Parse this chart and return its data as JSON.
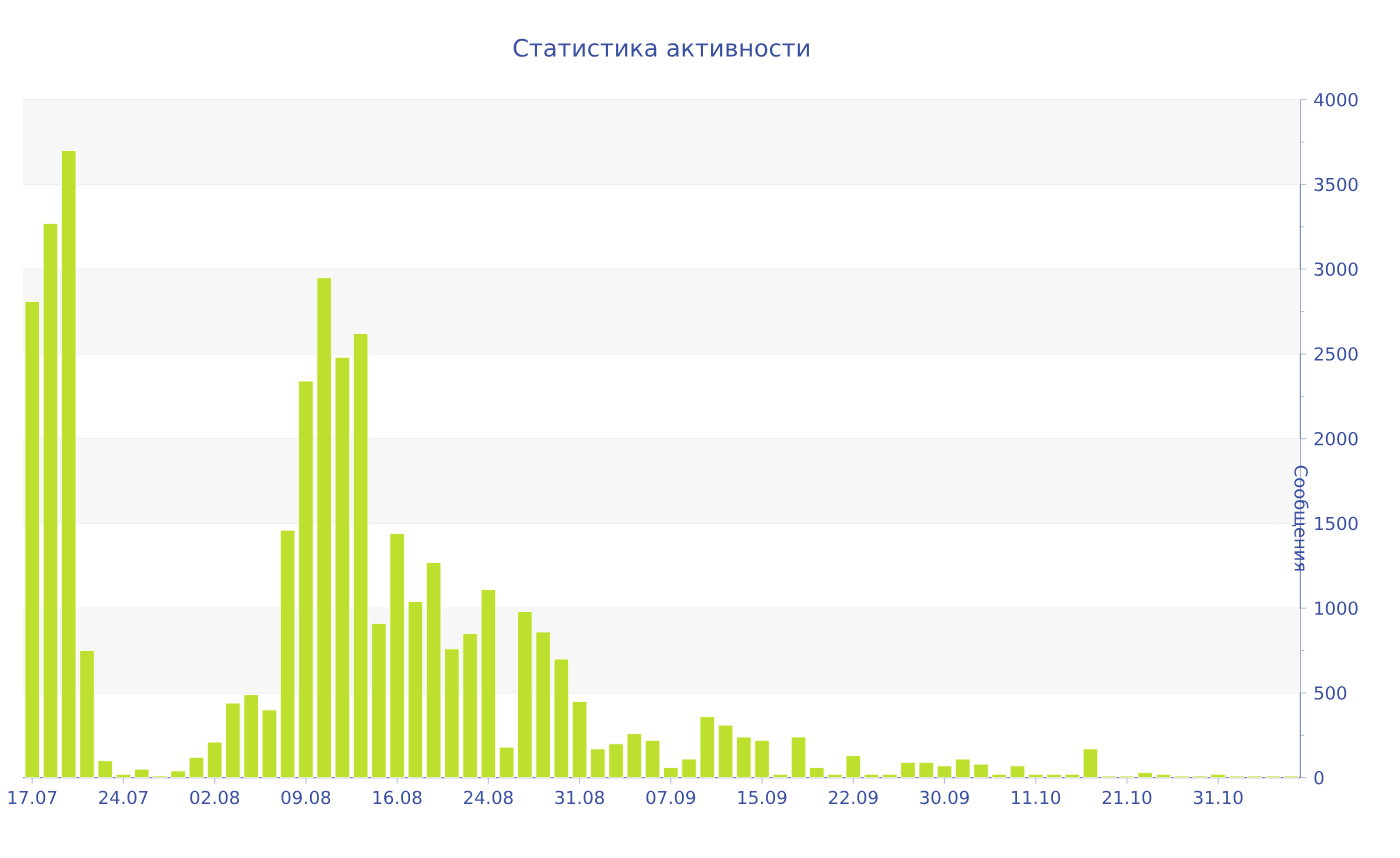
{
  "chart_data": {
    "type": "bar",
    "title": "Статистика активности",
    "ylabel": "Сообщения",
    "categories": [
      "17.07",
      null,
      null,
      null,
      null,
      "24.07",
      null,
      null,
      null,
      null,
      "02.08",
      null,
      null,
      null,
      null,
      "09.08",
      null,
      null,
      null,
      null,
      "16.08",
      null,
      null,
      null,
      null,
      "24.08",
      null,
      null,
      null,
      null,
      "31.08",
      null,
      null,
      null,
      null,
      "07.09",
      null,
      null,
      null,
      null,
      "15.09",
      null,
      null,
      null,
      null,
      "22.09",
      null,
      null,
      null,
      null,
      "30.09",
      null,
      null,
      null,
      null,
      "11.10",
      null,
      null,
      null,
      null,
      "21.10",
      null,
      null,
      null,
      null,
      "31.10",
      null,
      null,
      null,
      null
    ],
    "values": [
      2810,
      3270,
      3700,
      750,
      100,
      20,
      50,
      10,
      40,
      120,
      210,
      440,
      490,
      400,
      1460,
      2340,
      2950,
      2480,
      2620,
      910,
      1440,
      1040,
      1270,
      760,
      850,
      1110,
      180,
      980,
      860,
      700,
      450,
      170,
      200,
      260,
      220,
      60,
      110,
      360,
      310,
      240,
      220,
      20,
      240,
      60,
      20,
      130,
      20,
      20,
      90,
      90,
      70,
      110,
      80,
      20,
      70,
      20,
      20,
      20,
      170,
      10,
      10,
      30,
      20,
      10,
      10,
      20,
      10,
      10,
      10,
      10
    ],
    "color": "#bde02f",
    "ylim": [
      0,
      4000
    ],
    "yticks": [
      0,
      500,
      1000,
      1500,
      2000,
      2500,
      3000,
      3500,
      4000
    ],
    "grid": "y"
  }
}
